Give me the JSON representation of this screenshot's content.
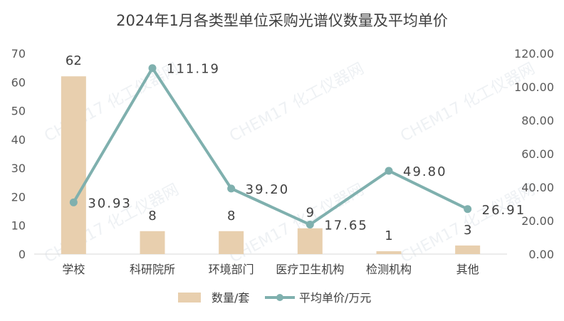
{
  "chart_data": {
    "type": "bar+line",
    "title": "2024年1月各类型单位采购光谱仪数量及平均单价",
    "categories": [
      "学校",
      "科研院所",
      "环境部门",
      "医疗卫生机构",
      "检测机构",
      "其他"
    ],
    "series": [
      {
        "name": "数量/套",
        "type": "bar",
        "axis": "left",
        "values": [
          62,
          8,
          8,
          9,
          1,
          3
        ],
        "labels": [
          "62",
          "8",
          "8",
          "9",
          "1",
          "3"
        ],
        "color": "#e8cfae"
      },
      {
        "name": "平均单价/万元",
        "type": "line",
        "axis": "right",
        "values": [
          30.93,
          111.19,
          39.2,
          17.65,
          49.8,
          26.91
        ],
        "labels": [
          "30.93",
          "111.19",
          "39.20",
          "17.65",
          "49.80",
          "26.91"
        ],
        "color": "#7fb0ae"
      }
    ],
    "y_left": {
      "min": 0,
      "max": 70,
      "ticks": [
        "0",
        "10",
        "20",
        "30",
        "40",
        "50",
        "60",
        "70"
      ]
    },
    "y_right": {
      "min": 0,
      "max": 120,
      "ticks": [
        "0.00",
        "20.00",
        "40.00",
        "60.00",
        "80.00",
        "100.00",
        "120.00"
      ]
    },
    "grid": false,
    "legend": "bottom-center",
    "watermark": "CHEM17 化工仪器网"
  }
}
